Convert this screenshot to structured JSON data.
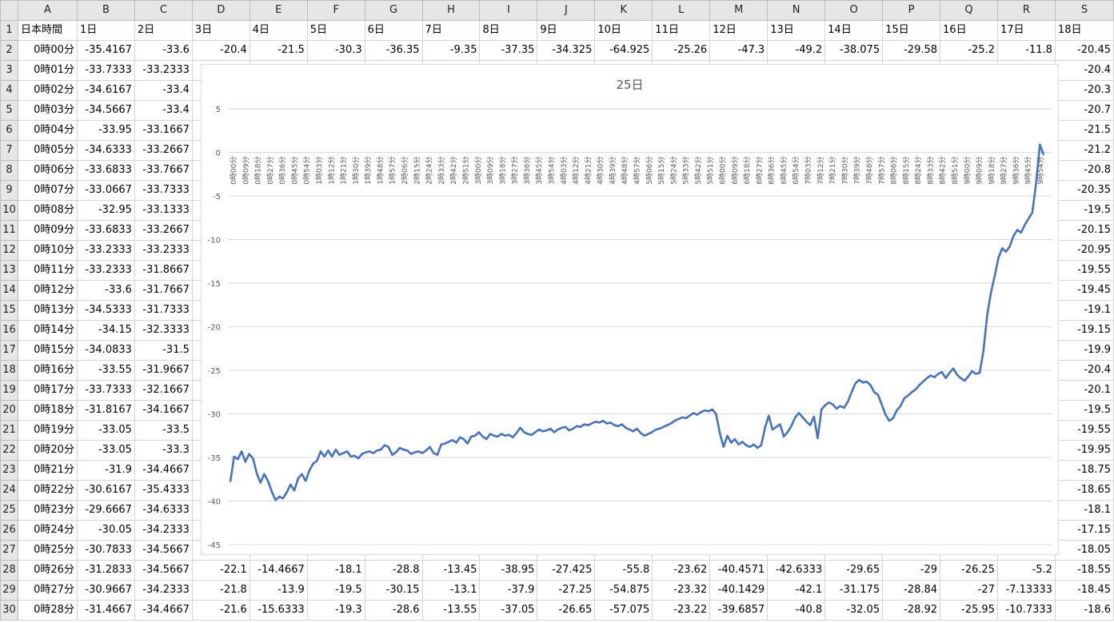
{
  "sheet": {
    "columns": [
      "A",
      "B",
      "C",
      "D",
      "E",
      "F",
      "G",
      "H",
      "I",
      "J",
      "K",
      "L",
      "M",
      "N",
      "O",
      "P",
      "Q",
      "R",
      "S"
    ],
    "header_row": [
      "日本時間",
      "1日",
      "2日",
      "3日",
      "4日",
      "5日",
      "6日",
      "7日",
      "8日",
      "9日",
      "10日",
      "11日",
      "12日",
      "13日",
      "14日",
      "15日",
      "16日",
      "17日",
      "18日"
    ],
    "rows": [
      {
        "n": "2",
        "cells": [
          "0時00分",
          "-35.4167",
          "-33.6",
          "-20.4",
          "-21.5",
          "-30.3",
          "-36.35",
          "-9.35",
          "-37.35",
          "-34.325",
          "-64.925",
          "-25.26",
          "-47.3",
          "-49.2",
          "-38.075",
          "-29.58",
          "-25.2",
          "-11.8",
          "-20.45"
        ]
      },
      {
        "n": "3",
        "cells": [
          "0時01分",
          "-33.7333",
          "-33.2333",
          "",
          "",
          "",
          "",
          "",
          "",
          "",
          "",
          "",
          "",
          "",
          "",
          "",
          "",
          "",
          "-20.4"
        ]
      },
      {
        "n": "4",
        "cells": [
          "0時02分",
          "-34.6167",
          "-33.4",
          "",
          "",
          "",
          "",
          "",
          "",
          "",
          "",
          "",
          "",
          "",
          "",
          "",
          "",
          "",
          "-20.3"
        ]
      },
      {
        "n": "5",
        "cells": [
          "0時03分",
          "-34.5667",
          "-33.4",
          "",
          "",
          "",
          "",
          "",
          "",
          "",
          "",
          "",
          "",
          "",
          "",
          "",
          "",
          "",
          "-20.7"
        ]
      },
      {
        "n": "6",
        "cells": [
          "0時04分",
          "-33.95",
          "-33.1667",
          "",
          "",
          "",
          "",
          "",
          "",
          "",
          "",
          "",
          "",
          "",
          "",
          "",
          "",
          "",
          "-21.5"
        ]
      },
      {
        "n": "7",
        "cells": [
          "0時05分",
          "-34.6333",
          "-33.2667",
          "",
          "",
          "",
          "",
          "",
          "",
          "",
          "",
          "",
          "",
          "",
          "",
          "",
          "",
          "",
          "-21.2"
        ]
      },
      {
        "n": "8",
        "cells": [
          "0時06分",
          "-33.6833",
          "-33.7667",
          "",
          "",
          "",
          "",
          "",
          "",
          "",
          "",
          "",
          "",
          "",
          "",
          "",
          "",
          "",
          "-20.8"
        ]
      },
      {
        "n": "9",
        "cells": [
          "0時07分",
          "-33.0667",
          "-33.7333",
          "",
          "",
          "",
          "",
          "",
          "",
          "",
          "",
          "",
          "",
          "",
          "",
          "",
          "",
          "",
          "-20.35"
        ]
      },
      {
        "n": "10",
        "cells": [
          "0時08分",
          "-32.95",
          "-33.1333",
          "",
          "",
          "",
          "",
          "",
          "",
          "",
          "",
          "",
          "",
          "",
          "",
          "",
          "",
          "",
          "-19.5"
        ]
      },
      {
        "n": "11",
        "cells": [
          "0時09分",
          "-33.6833",
          "-33.2667",
          "",
          "",
          "",
          "",
          "",
          "",
          "",
          "",
          "",
          "",
          "",
          "",
          "",
          "",
          "",
          "-20.15"
        ]
      },
      {
        "n": "12",
        "cells": [
          "0時10分",
          "-33.2333",
          "-33.2333",
          "",
          "",
          "",
          "",
          "",
          "",
          "",
          "",
          "",
          "",
          "",
          "",
          "",
          "",
          "",
          "-20.95"
        ]
      },
      {
        "n": "13",
        "cells": [
          "0時11分",
          "-33.2333",
          "-31.8667",
          "",
          "",
          "",
          "",
          "",
          "",
          "",
          "",
          "",
          "",
          "",
          "",
          "",
          "",
          "",
          "-19.55"
        ]
      },
      {
        "n": "14",
        "cells": [
          "0時12分",
          "-33.6",
          "-31.7667",
          "",
          "",
          "",
          "",
          "",
          "",
          "",
          "",
          "",
          "",
          "",
          "",
          "",
          "",
          "",
          "-19.45"
        ]
      },
      {
        "n": "15",
        "cells": [
          "0時13分",
          "-34.5333",
          "-31.7333",
          "",
          "",
          "",
          "",
          "",
          "",
          "",
          "",
          "",
          "",
          "",
          "",
          "",
          "",
          "",
          "-19.1"
        ]
      },
      {
        "n": "16",
        "cells": [
          "0時14分",
          "-34.15",
          "-32.3333",
          "",
          "",
          "",
          "",
          "",
          "",
          "",
          "",
          "",
          "",
          "",
          "",
          "",
          "",
          "",
          "-19.15"
        ]
      },
      {
        "n": "17",
        "cells": [
          "0時15分",
          "-34.0833",
          "-31.5",
          "",
          "",
          "",
          "",
          "",
          "",
          "",
          "",
          "",
          "",
          "",
          "",
          "",
          "",
          "",
          "-19.9"
        ]
      },
      {
        "n": "18",
        "cells": [
          "0時16分",
          "-33.55",
          "-31.9667",
          "",
          "",
          "",
          "",
          "",
          "",
          "",
          "",
          "",
          "",
          "",
          "",
          "",
          "",
          "",
          "-20.4"
        ]
      },
      {
        "n": "19",
        "cells": [
          "0時17分",
          "-33.7333",
          "-32.1667",
          "",
          "",
          "",
          "",
          "",
          "",
          "",
          "",
          "",
          "",
          "",
          "",
          "",
          "",
          "",
          "-20.1"
        ]
      },
      {
        "n": "20",
        "cells": [
          "0時18分",
          "-31.8167",
          "-34.1667",
          "",
          "",
          "",
          "",
          "",
          "",
          "",
          "",
          "",
          "",
          "",
          "",
          "",
          "",
          "",
          "-19.5"
        ]
      },
      {
        "n": "21",
        "cells": [
          "0時19分",
          "-33.05",
          "-33.5",
          "",
          "",
          "",
          "",
          "",
          "",
          "",
          "",
          "",
          "",
          "",
          "",
          "",
          "",
          "",
          "-19.55"
        ]
      },
      {
        "n": "22",
        "cells": [
          "0時20分",
          "-33.05",
          "-33.3",
          "",
          "",
          "",
          "",
          "",
          "",
          "",
          "",
          "",
          "",
          "",
          "",
          "",
          "",
          "",
          "-19.95"
        ]
      },
      {
        "n": "23",
        "cells": [
          "0時21分",
          "-31.9",
          "-34.4667",
          "",
          "",
          "",
          "",
          "",
          "",
          "",
          "",
          "",
          "",
          "",
          "",
          "",
          "",
          "",
          "-18.75"
        ]
      },
      {
        "n": "24",
        "cells": [
          "0時22分",
          "-30.6167",
          "-35.4333",
          "",
          "",
          "",
          "",
          "",
          "",
          "",
          "",
          "",
          "",
          "",
          "",
          "",
          "",
          "",
          "-18.65"
        ]
      },
      {
        "n": "25",
        "cells": [
          "0時23分",
          "-29.6667",
          "-34.6333",
          "",
          "",
          "",
          "",
          "",
          "",
          "",
          "",
          "",
          "",
          "",
          "",
          "",
          "",
          "",
          "-18.1"
        ]
      },
      {
        "n": "26",
        "cells": [
          "0時24分",
          "-30.05",
          "-34.2333",
          "",
          "",
          "",
          "",
          "",
          "",
          "",
          "",
          "",
          "",
          "",
          "",
          "",
          "",
          "",
          "-17.15"
        ]
      },
      {
        "n": "27",
        "cells": [
          "0時25分",
          "-30.7833",
          "-34.5667",
          "",
          "",
          "",
          "",
          "",
          "",
          "",
          "",
          "",
          "",
          "",
          "",
          "",
          "",
          "",
          "-18.05"
        ]
      },
      {
        "n": "28",
        "cells": [
          "0時26分",
          "-31.2833",
          "-34.5667",
          "-22.1",
          "-14.4667",
          "-18.1",
          "-28.8",
          "-13.45",
          "-38.95",
          "-27.425",
          "-55.8",
          "-23.62",
          "-40.4571",
          "-42.6333",
          "-29.65",
          "-29",
          "-26.25",
          "-5.2",
          "-18.55"
        ]
      },
      {
        "n": "29",
        "cells": [
          "0時27分",
          "-30.9667",
          "-34.2333",
          "-21.8",
          "-13.9",
          "-19.5",
          "-30.15",
          "-13.1",
          "-37.9",
          "-27.25",
          "-54.875",
          "-23.32",
          "-40.1429",
          "-42.1",
          "-31.175",
          "-28.84",
          "-27",
          "-7.13333",
          "-18.45"
        ]
      },
      {
        "n": "30",
        "cells": [
          "0時28分",
          "-31.4667",
          "-34.4667",
          "-21.6",
          "-15.6333",
          "-19.3",
          "-28.6",
          "-13.55",
          "-37.05",
          "-26.65",
          "-57.075",
          "-23.22",
          "-39.6857",
          "-40.8",
          "-32.05",
          "-28.92",
          "-25.95",
          "-10.7333",
          "-18.6"
        ]
      }
    ]
  },
  "chart": {
    "line_color": "#4472C4",
    "grid_color": "#d9d9d9",
    "axis_text_color": "#595959"
  },
  "chart_data": {
    "type": "line",
    "title": "25日",
    "xlabel": "",
    "ylabel": "",
    "ylim": [
      -45,
      5
    ],
    "yticks": [
      5,
      0,
      -5,
      -10,
      -15,
      -20,
      -25,
      -30,
      -35,
      -40,
      -45
    ],
    "grid": "horizontal",
    "legend": "none",
    "x_tick_labels": [
      "0時00分",
      "0時09分",
      "0時18分",
      "0時27分",
      "0時36分",
      "0時45分",
      "0時54分",
      "1時03分",
      "1時12分",
      "1時21分",
      "1時30分",
      "1時39分",
      "1時48分",
      "1時57分",
      "2時06分",
      "2時15分",
      "2時24分",
      "2時33分",
      "2時42分",
      "2時51分",
      "3時00分",
      "3時09分",
      "3時18分",
      "3時27分",
      "3時36分",
      "3時45分",
      "3時54分",
      "4時03分",
      "4時12分",
      "4時21分",
      "4時30分",
      "4時39分",
      "4時48分",
      "4時57分",
      "5時06分",
      "5時15分",
      "5時24分",
      "5時33分",
      "5時42分",
      "5時51分",
      "6時00分",
      "6時09分",
      "6時18分",
      "6時27分",
      "6時36分",
      "6時45分",
      "6時54分",
      "7時03分",
      "7時12分",
      "7時21分",
      "7時30分",
      "7時39分",
      "7時48分",
      "7時57分",
      "8時06分",
      "8時15分",
      "8時24分",
      "8時33分",
      "8時42分",
      "8時51分",
      "9時00分",
      "9時09分",
      "9時18分",
      "9時27分",
      "9時36分",
      "9時45分",
      "9時54分"
    ],
    "x_minutes": [
      0,
      3,
      6,
      9,
      12,
      15,
      18,
      21,
      24,
      27,
      30,
      33,
      36,
      39,
      42,
      45,
      48,
      51,
      54,
      57,
      60,
      63,
      66,
      69,
      72,
      75,
      78,
      81,
      84,
      87,
      90,
      93,
      96,
      99,
      102,
      105,
      108,
      111,
      114,
      117,
      120,
      123,
      126,
      129,
      132,
      135,
      138,
      141,
      144,
      147,
      150,
      153,
      156,
      159,
      162,
      165,
      168,
      171,
      174,
      177,
      180,
      183,
      186,
      189,
      192,
      195,
      198,
      201,
      204,
      207,
      210,
      213,
      216,
      219,
      222,
      225,
      228,
      231,
      234,
      237,
      240,
      243,
      246,
      249,
      252,
      255,
      258,
      261,
      264,
      267,
      270,
      273,
      276,
      279,
      282,
      285,
      288,
      291,
      294,
      297,
      300,
      303,
      306,
      309,
      312,
      315,
      318,
      321,
      324,
      327,
      330,
      333,
      336,
      339,
      342,
      345,
      348,
      351,
      354,
      357,
      360,
      363,
      366,
      369,
      372,
      375,
      378,
      381,
      384,
      387,
      390,
      393,
      396,
      399,
      402,
      405,
      408,
      411,
      414,
      417,
      420,
      423,
      426,
      429,
      432,
      435,
      438,
      441,
      444,
      447,
      450,
      453,
      456,
      459,
      462,
      465,
      468,
      471,
      474,
      477,
      480,
      483,
      486,
      489,
      492,
      495,
      498,
      501,
      504,
      507,
      510,
      513,
      516,
      519,
      522,
      525,
      528,
      531,
      534,
      537,
      540,
      543,
      546,
      549,
      552,
      555,
      558,
      561,
      564,
      567,
      570,
      573,
      576,
      579,
      582,
      585,
      588,
      591,
      594,
      597
    ],
    "series": [
      {
        "values": [
          -37.8,
          -34.9,
          -35.2,
          -34.3,
          -35.5,
          -34.6,
          -35.1,
          -36.8,
          -37.9,
          -36.9,
          -37.7,
          -38.9,
          -39.9,
          -39.5,
          -39.7,
          -39.0,
          -38.1,
          -38.8,
          -37.4,
          -36.9,
          -37.7,
          -36.5,
          -35.7,
          -35.4,
          -34.3,
          -34.9,
          -34.2,
          -34.9,
          -34.1,
          -34.7,
          -34.5,
          -34.3,
          -34.9,
          -34.8,
          -35.1,
          -34.6,
          -34.4,
          -34.3,
          -34.5,
          -34.2,
          -34.1,
          -33.6,
          -33.8,
          -34.7,
          -34.4,
          -33.9,
          -34.1,
          -34.2,
          -34.6,
          -34.4,
          -34.3,
          -34.5,
          -34.2,
          -33.8,
          -34.5,
          -34.7,
          -33.5,
          -33.4,
          -33.2,
          -33.0,
          -33.3,
          -32.7,
          -32.9,
          -33.4,
          -32.6,
          -32.5,
          -32.1,
          -32.6,
          -32.9,
          -32.3,
          -32.5,
          -32.6,
          -32.3,
          -32.5,
          -32.4,
          -32.7,
          -32.2,
          -31.6,
          -32.1,
          -32.3,
          -32.4,
          -32.1,
          -31.8,
          -32.0,
          -31.9,
          -31.7,
          -32.1,
          -31.8,
          -31.6,
          -31.5,
          -31.9,
          -31.7,
          -31.4,
          -31.5,
          -31.2,
          -31.3,
          -31.1,
          -30.9,
          -31.0,
          -30.8,
          -31.1,
          -31.0,
          -31.3,
          -31.4,
          -31.2,
          -31.6,
          -31.8,
          -32.0,
          -31.7,
          -32.2,
          -32.5,
          -32.3,
          -32.1,
          -31.8,
          -31.7,
          -31.5,
          -31.3,
          -31.1,
          -30.8,
          -30.6,
          -30.4,
          -30.5,
          -30.2,
          -29.9,
          -30.1,
          -29.8,
          -29.6,
          -29.7,
          -29.5,
          -30.0,
          -32.2,
          -33.8,
          -32.5,
          -33.3,
          -32.9,
          -33.5,
          -33.2,
          -33.6,
          -33.8,
          -33.5,
          -33.9,
          -33.6,
          -31.6,
          -30.2,
          -31.8,
          -31.5,
          -31.2,
          -32.6,
          -32.1,
          -31.4,
          -30.4,
          -29.9,
          -30.4,
          -30.9,
          -31.3,
          -30.3,
          -32.8,
          -29.5,
          -29.0,
          -28.7,
          -28.9,
          -29.4,
          -29.1,
          -29.3,
          -28.6,
          -27.5,
          -26.5,
          -26.1,
          -26.4,
          -26.3,
          -26.7,
          -27.5,
          -27.8,
          -28.9,
          -30.1,
          -30.8,
          -30.5,
          -29.6,
          -29.1,
          -28.2,
          -27.9,
          -27.5,
          -27.2,
          -26.7,
          -26.3,
          -25.9,
          -25.6,
          -25.8,
          -25.4,
          -25.2,
          -25.9,
          -25.3,
          -24.8,
          -25.5,
          -25.9,
          -26.2,
          -25.7,
          -25.1,
          -25.4,
          -25.3
        ]
      }
    ],
    "tail_note_values": [
      -22.8,
      -18.7,
      -16.1,
      -14.2,
      -12.1,
      -11.0,
      -11.4,
      -10.8,
      -9.6,
      -8.9,
      -9.2,
      -8.3,
      -7.6,
      -6.9,
      -3.5,
      0.9,
      -0.3
    ]
  }
}
